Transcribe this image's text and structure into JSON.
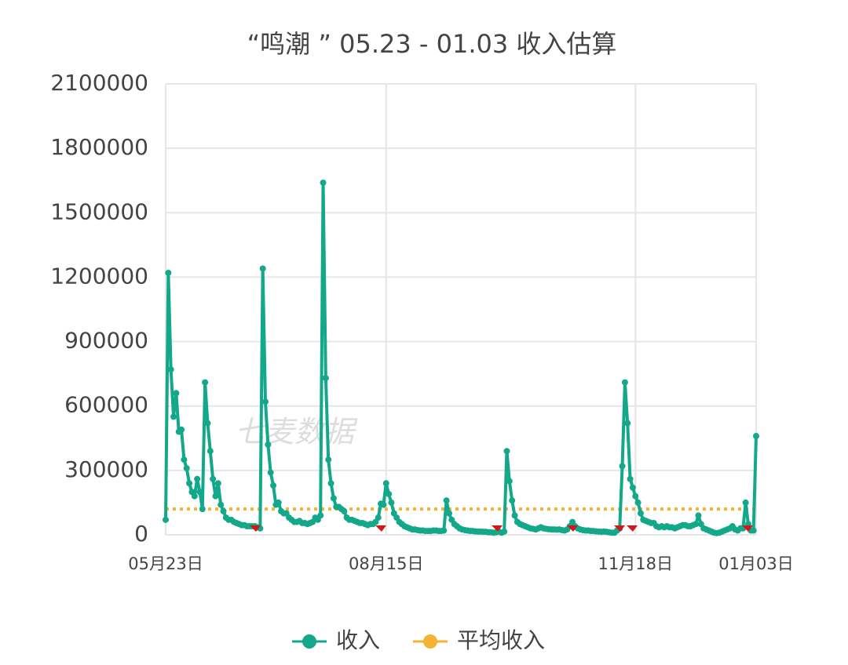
{
  "chart_data": {
    "type": "line",
    "title": "“鸣潮 ” 05.23 - 01.03 收入估算",
    "watermark": "七麦数据",
    "categories": [
      "05月23日",
      null,
      null,
      null,
      null,
      null,
      null,
      null,
      null,
      null,
      null,
      null,
      null,
      null,
      null,
      null,
      null,
      null,
      null,
      null,
      null,
      null,
      null,
      null,
      null,
      null,
      null,
      null,
      null,
      null,
      null,
      null,
      null,
      null,
      null,
      null,
      null,
      null,
      null,
      null,
      null,
      null,
      null,
      null,
      null,
      null,
      null,
      null,
      null,
      null,
      null,
      null,
      null,
      null,
      null,
      null,
      null,
      null,
      null,
      null,
      null,
      null,
      null,
      null,
      null,
      null,
      null,
      null,
      null,
      null,
      null,
      null,
      null,
      null,
      null,
      null,
      null,
      null,
      null,
      null,
      null,
      null,
      null,
      null,
      "08月15日",
      null,
      null,
      null,
      null,
      null,
      null,
      null,
      null,
      null,
      null,
      null,
      null,
      null,
      null,
      null,
      null,
      null,
      null,
      null,
      null,
      null,
      null,
      null,
      null,
      null,
      null,
      null,
      null,
      null,
      null,
      null,
      null,
      null,
      null,
      null,
      null,
      null,
      null,
      null,
      null,
      null,
      null,
      null,
      null,
      null,
      null,
      null,
      null,
      null,
      null,
      null,
      null,
      null,
      null,
      null,
      null,
      null,
      null,
      null,
      null,
      null,
      null,
      null,
      null,
      null,
      null,
      null,
      null,
      null,
      null,
      null,
      null,
      null,
      null,
      null,
      null,
      null,
      null,
      null,
      null,
      null,
      null,
      null,
      null,
      null,
      null,
      null,
      null,
      null,
      null,
      null,
      null,
      null,
      null,
      "11月18日",
      null,
      null,
      null,
      null,
      null,
      null,
      null,
      null,
      null,
      null,
      null,
      null,
      null,
      null,
      null,
      null,
      null,
      null,
      null,
      null,
      null,
      null,
      null,
      null,
      null,
      null,
      null,
      null,
      null,
      null,
      null,
      null,
      null,
      null,
      null,
      null,
      null,
      null,
      null,
      null,
      null,
      null,
      null,
      null,
      null,
      "01月03日"
    ],
    "series": [
      {
        "name": "收入",
        "color": "#13a88a",
        "values": [
          70000,
          1220000,
          770000,
          550000,
          660000,
          480000,
          490000,
          350000,
          310000,
          240000,
          200000,
          180000,
          260000,
          200000,
          120000,
          710000,
          520000,
          390000,
          260000,
          180000,
          240000,
          140000,
          110000,
          80000,
          70000,
          70000,
          60000,
          55000,
          50000,
          45000,
          45000,
          40000,
          40000,
          40000,
          40000,
          35000,
          30000,
          1240000,
          620000,
          420000,
          290000,
          230000,
          140000,
          150000,
          110000,
          100000,
          100000,
          80000,
          70000,
          60000,
          60000,
          65000,
          55000,
          55000,
          50000,
          55000,
          60000,
          80000,
          70000,
          90000,
          1640000,
          730000,
          350000,
          240000,
          170000,
          130000,
          130000,
          120000,
          110000,
          80000,
          70000,
          70000,
          65000,
          60000,
          55000,
          55000,
          50000,
          45000,
          50000,
          50000,
          60000,
          80000,
          145000,
          140000,
          240000,
          190000,
          150000,
          100000,
          80000,
          60000,
          50000,
          40000,
          35000,
          30000,
          25000,
          25000,
          22000,
          20000,
          20000,
          18000,
          18000,
          18000,
          20000,
          20000,
          18000,
          18000,
          20000,
          160000,
          100000,
          70000,
          50000,
          40000,
          30000,
          25000,
          22000,
          20000,
          18000,
          18000,
          16000,
          15000,
          15000,
          14000,
          14000,
          12000,
          12000,
          10000,
          12000,
          15000,
          10000,
          15000,
          390000,
          250000,
          160000,
          90000,
          60000,
          50000,
          45000,
          40000,
          35000,
          30000,
          28000,
          25000,
          30000,
          35000,
          30000,
          28000,
          26000,
          25000,
          25000,
          24000,
          25000,
          22000,
          20000,
          25000,
          40000,
          60000,
          40000,
          30000,
          25000,
          22000,
          20000,
          20000,
          18000,
          18000,
          16000,
          15000,
          14000,
          15000,
          14000,
          12000,
          10000,
          10000,
          20000,
          30000,
          320000,
          710000,
          520000,
          260000,
          220000,
          180000,
          150000,
          100000,
          70000,
          65000,
          60000,
          55000,
          55000,
          40000,
          35000,
          40000,
          35000,
          40000,
          35000,
          35000,
          30000,
          35000,
          40000,
          45000,
          45000,
          40000,
          40000,
          45000,
          50000,
          90000,
          50000,
          30000,
          25000,
          20000,
          15000,
          10000,
          8000,
          10000,
          15000,
          20000,
          25000,
          30000,
          40000,
          25000,
          20000,
          30000,
          30000,
          150000,
          50000,
          20000,
          20000,
          460000
        ]
      },
      {
        "name": "平均收入",
        "color": "#f5b335",
        "value": 120000
      }
    ],
    "ylim": [
      0,
      2100000
    ],
    "yticks": [
      0,
      300000,
      600000,
      900000,
      1200000,
      1500000,
      1800000,
      2100000
    ],
    "grid": true
  }
}
